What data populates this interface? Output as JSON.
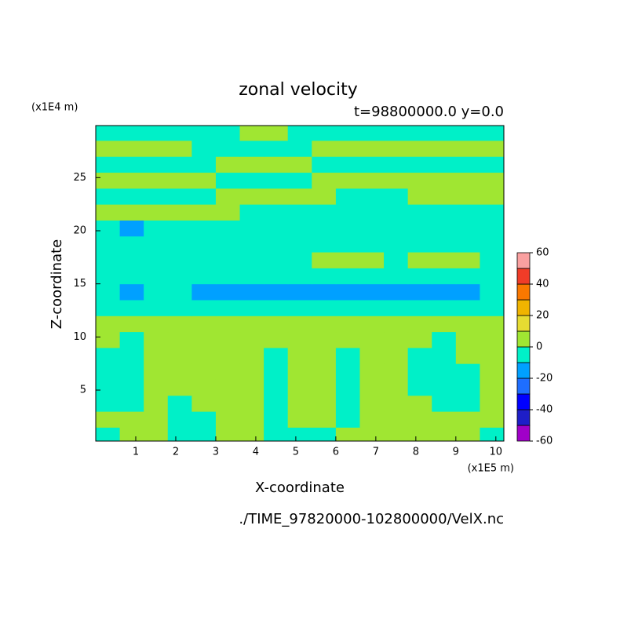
{
  "chart_data": {
    "type": "contour",
    "title": "zonal velocity",
    "subtitle": "t=98800000.0 y=0.0",
    "x_label": "X-coordinate",
    "y_label": "Z-coordinate",
    "x_unit": "(x1E5 m)",
    "y_unit": "(x1E4 m)",
    "source": "./TIME_97820000-102800000/VelX.nc",
    "xlim": [
      0,
      10.2
    ],
    "ylim": [
      0.2,
      29.9
    ],
    "xticks": [
      1,
      2,
      3,
      4,
      5,
      6,
      7,
      8,
      9,
      10
    ],
    "yticks": [
      5,
      10,
      15,
      20,
      25
    ],
    "clevs": [
      -60,
      -50,
      -40,
      -30,
      -20,
      -10,
      0,
      10,
      20,
      30,
      40,
      50,
      60
    ],
    "colors": [
      "#a000c8",
      "#1e1ec8",
      "#0000ff",
      "#1e6eff",
      "#00a0ff",
      "#00f0c8",
      "#a0e632",
      "#e6dc32",
      "#f0b400",
      "#fa7800",
      "#f03c28",
      "#faa0a0"
    ],
    "cbar_ticks": [
      -60,
      -40,
      -20,
      0,
      20,
      40,
      60
    ],
    "grid_x": [
      0.3,
      0.9,
      1.5,
      2.1,
      2.7,
      3.3,
      3.9,
      4.5,
      5.1,
      5.7,
      6.3,
      6.9,
      7.5,
      8.1,
      8.7,
      9.3,
      9.9
    ],
    "grid_z": [
      0.75,
      2.25,
      3.75,
      5.25,
      6.75,
      8.25,
      9.75,
      11.25,
      12.75,
      14.25,
      15.75,
      17.25,
      18.75,
      20.25,
      21.75,
      23.25,
      24.75,
      26.25,
      27.75,
      29.25
    ],
    "z": [
      [
        -5,
        5,
        5,
        -5,
        -5,
        5,
        5,
        -5,
        -5,
        -5,
        5,
        5,
        5,
        5,
        5,
        5,
        -5
      ],
      [
        5,
        5,
        5,
        -5,
        -5,
        5,
        5,
        -5,
        5,
        5,
        -5,
        5,
        5,
        5,
        5,
        5,
        5
      ],
      [
        -5,
        -5,
        5,
        -5,
        5,
        5,
        5,
        -5,
        5,
        5,
        -5,
        5,
        5,
        5,
        -5,
        -5,
        5
      ],
      [
        -5,
        -5,
        5,
        5,
        5,
        5,
        5,
        -5,
        5,
        5,
        -5,
        5,
        5,
        -5,
        -5,
        -5,
        5
      ],
      [
        -5,
        -5,
        5,
        5,
        5,
        5,
        5,
        -5,
        5,
        5,
        -5,
        5,
        5,
        -5,
        -5,
        -5,
        5
      ],
      [
        -5,
        -5,
        5,
        5,
        5,
        5,
        5,
        -5,
        5,
        5,
        -5,
        5,
        5,
        -5,
        -5,
        5,
        5
      ],
      [
        5,
        -5,
        5,
        5,
        5,
        5,
        5,
        5,
        5,
        5,
        5,
        5,
        5,
        5,
        -5,
        5,
        5
      ],
      [
        5,
        5,
        5,
        5,
        5,
        5,
        5,
        5,
        5,
        5,
        5,
        5,
        5,
        5,
        5,
        5,
        5
      ],
      [
        -5,
        -5,
        -5,
        -5,
        -5,
        -5,
        -5,
        -5,
        -5,
        -5,
        -5,
        -5,
        -5,
        -5,
        -5,
        -5,
        -5
      ],
      [
        -5,
        -15,
        -5,
        -5,
        -15,
        -15,
        -15,
        -15,
        -15,
        -15,
        -15,
        -15,
        -15,
        -15,
        -15,
        -15,
        -5
      ],
      [
        -5,
        -5,
        -5,
        -5,
        -5,
        -5,
        -5,
        -5,
        -5,
        -5,
        -5,
        -5,
        -5,
        -5,
        -5,
        -5,
        -5
      ],
      [
        -5,
        -5,
        -5,
        -5,
        -5,
        -5,
        -5,
        -5,
        -5,
        5,
        5,
        5,
        -5,
        5,
        5,
        5,
        -5
      ],
      [
        -5,
        -5,
        -5,
        -5,
        -5,
        -5,
        -5,
        -5,
        -5,
        -5,
        -5,
        -5,
        -5,
        -5,
        -5,
        -5,
        -5
      ],
      [
        -5,
        -15,
        -5,
        -5,
        -5,
        -5,
        -5,
        -5,
        -5,
        -5,
        -5,
        -5,
        -5,
        -5,
        -5,
        -5,
        -5
      ],
      [
        5,
        5,
        5,
        5,
        5,
        5,
        -5,
        -5,
        -5,
        -5,
        -5,
        -5,
        -5,
        -5,
        -5,
        -5,
        -5
      ],
      [
        -5,
        -5,
        -5,
        -5,
        -5,
        5,
        5,
        5,
        5,
        5,
        -5,
        -5,
        -5,
        5,
        5,
        5,
        5
      ],
      [
        5,
        5,
        5,
        5,
        5,
        -5,
        -5,
        -5,
        -5,
        5,
        5,
        5,
        5,
        5,
        5,
        5,
        5
      ],
      [
        -5,
        -5,
        -5,
        -5,
        -5,
        5,
        5,
        5,
        5,
        -5,
        -5,
        -5,
        -5,
        -5,
        -5,
        -5,
        -5
      ],
      [
        5,
        5,
        5,
        5,
        -5,
        -5,
        -5,
        -5,
        -5,
        5,
        5,
        5,
        5,
        5,
        5,
        5,
        5
      ],
      [
        -5,
        -5,
        -5,
        -5,
        -5,
        -5,
        5,
        5,
        -5,
        -5,
        -5,
        -5,
        -5,
        -5,
        -5,
        -5,
        -5
      ]
    ]
  }
}
